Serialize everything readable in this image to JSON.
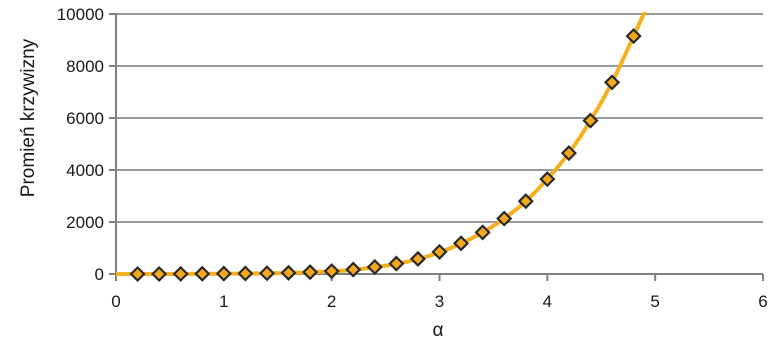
{
  "chart_data": {
    "type": "scatter",
    "xlabel": "α",
    "ylabel": "Promień krzywizny",
    "xlim": [
      0,
      6
    ],
    "ylim": [
      0,
      10000
    ],
    "x_ticks": [
      "0",
      "1",
      "2",
      "3",
      "4",
      "5",
      "6"
    ],
    "y_ticks": [
      "0",
      "2000",
      "4000",
      "6000",
      "8000",
      "10000"
    ],
    "grid": "horizontal",
    "series": [
      {
        "x": [
          0.2,
          0.4,
          0.6,
          0.8,
          1.0,
          1.2,
          1.4,
          1.6,
          1.8,
          2.0,
          2.2,
          2.4,
          2.6,
          2.8,
          3.0,
          3.2,
          3.4,
          3.6,
          3.8,
          4.0,
          4.2,
          4.4,
          4.6,
          4.8
        ],
        "y": [
          0,
          0,
          5,
          10,
          15,
          20,
          30,
          45,
          70,
          110,
          170,
          270,
          400,
          580,
          850,
          1180,
          1600,
          2130,
          2800,
          3650,
          4650,
          5900,
          7370,
          9150
        ],
        "marker": "diamond",
        "marker_color": "#f5a81c",
        "marker_edge": "#2a2a2a"
      }
    ],
    "trend_line": {
      "x": [
        0,
        0.5,
        1.0,
        1.5,
        2.0,
        2.2,
        2.4,
        2.6,
        2.8,
        3.0,
        3.2,
        3.4,
        3.6,
        3.8,
        4.0,
        4.2,
        4.4,
        4.6,
        4.8,
        4.9
      ],
      "y": [
        0,
        0,
        10,
        30,
        100,
        165,
        260,
        390,
        570,
        830,
        1170,
        1600,
        2130,
        2800,
        3650,
        4650,
        5900,
        7370,
        9150,
        10050
      ],
      "color": "#f5b01f"
    }
  }
}
